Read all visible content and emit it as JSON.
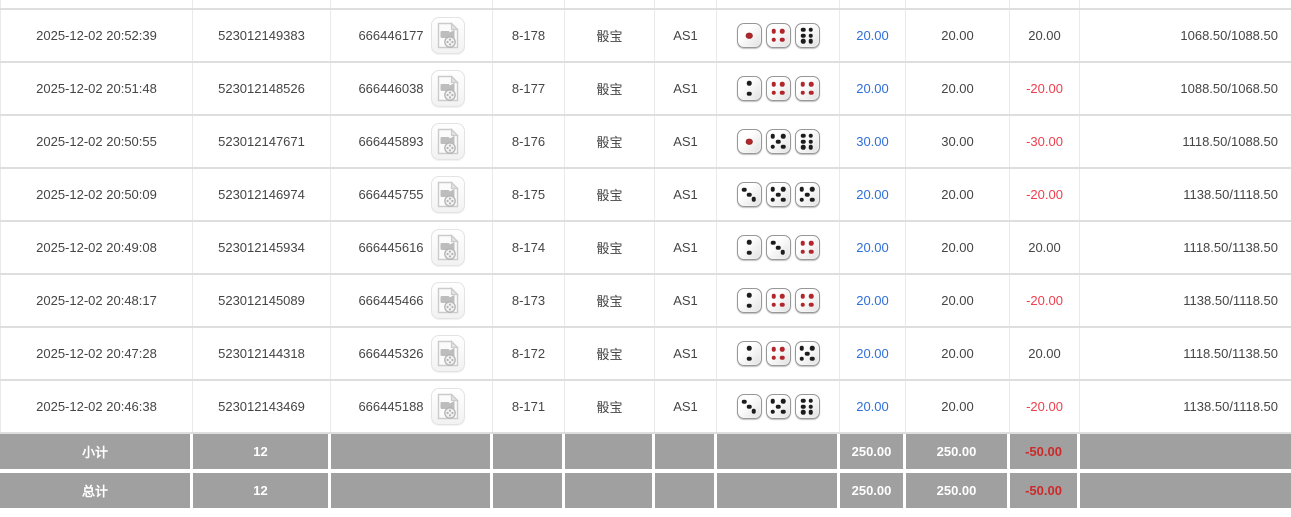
{
  "table": {
    "rows": [
      {
        "time": "2025-12-02 20:52:39",
        "bet_id": "523012149383",
        "round_id": "666446177",
        "round_no": "8-178",
        "game": "骰宝",
        "table_name": "AS1",
        "dice": [
          1,
          4,
          6
        ],
        "bet": "20.00",
        "valid": "20.00",
        "win_loss": "20.00",
        "win_loss_negative": false,
        "balance": "1068.50/1088.50"
      },
      {
        "time": "2025-12-02 20:51:48",
        "bet_id": "523012148526",
        "round_id": "666446038",
        "round_no": "8-177",
        "game": "骰宝",
        "table_name": "AS1",
        "dice": [
          2,
          4,
          4
        ],
        "bet": "20.00",
        "valid": "20.00",
        "win_loss": "-20.00",
        "win_loss_negative": true,
        "balance": "1088.50/1068.50"
      },
      {
        "time": "2025-12-02 20:50:55",
        "bet_id": "523012147671",
        "round_id": "666445893",
        "round_no": "8-176",
        "game": "骰宝",
        "table_name": "AS1",
        "dice": [
          1,
          5,
          6
        ],
        "bet": "30.00",
        "valid": "30.00",
        "win_loss": "-30.00",
        "win_loss_negative": true,
        "balance": "1118.50/1088.50"
      },
      {
        "time": "2025-12-02 20:50:09",
        "bet_id": "523012146974",
        "round_id": "666445755",
        "round_no": "8-175",
        "game": "骰宝",
        "table_name": "AS1",
        "dice": [
          3,
          5,
          5
        ],
        "bet": "20.00",
        "valid": "20.00",
        "win_loss": "-20.00",
        "win_loss_negative": true,
        "balance": "1138.50/1118.50"
      },
      {
        "time": "2025-12-02 20:49:08",
        "bet_id": "523012145934",
        "round_id": "666445616",
        "round_no": "8-174",
        "game": "骰宝",
        "table_name": "AS1",
        "dice": [
          2,
          3,
          4
        ],
        "bet": "20.00",
        "valid": "20.00",
        "win_loss": "20.00",
        "win_loss_negative": false,
        "balance": "1118.50/1138.50"
      },
      {
        "time": "2025-12-02 20:48:17",
        "bet_id": "523012145089",
        "round_id": "666445466",
        "round_no": "8-173",
        "game": "骰宝",
        "table_name": "AS1",
        "dice": [
          2,
          4,
          4
        ],
        "bet": "20.00",
        "valid": "20.00",
        "win_loss": "-20.00",
        "win_loss_negative": true,
        "balance": "1138.50/1118.50"
      },
      {
        "time": "2025-12-02 20:47:28",
        "bet_id": "523012144318",
        "round_id": "666445326",
        "round_no": "8-172",
        "game": "骰宝",
        "table_name": "AS1",
        "dice": [
          2,
          4,
          5
        ],
        "bet": "20.00",
        "valid": "20.00",
        "win_loss": "20.00",
        "win_loss_negative": false,
        "balance": "1118.50/1138.50"
      },
      {
        "time": "2025-12-02 20:46:38",
        "bet_id": "523012143469",
        "round_id": "666445188",
        "round_no": "8-171",
        "game": "骰宝",
        "table_name": "AS1",
        "dice": [
          3,
          5,
          6
        ],
        "bet": "20.00",
        "valid": "20.00",
        "win_loss": "-20.00",
        "win_loss_negative": true,
        "balance": "1138.50/1118.50"
      }
    ],
    "footer": [
      {
        "label": "小计",
        "count": "12",
        "bet": "250.00",
        "valid": "250.00",
        "win_loss": "-50.00"
      },
      {
        "label": "总计",
        "count": "12",
        "bet": "250.00",
        "valid": "250.00",
        "win_loss": "-50.00"
      }
    ]
  },
  "icons": {
    "video_replay": "video-file-icon"
  },
  "colors": {
    "bet_blue": "#2f6fd9",
    "loss_red": "#ee3f4d",
    "text_dark": "#454545",
    "footer_bg": "#a0a0a0",
    "footer_text": "#ffffff",
    "footer_red": "#cc2a2a",
    "dice_red_pip": "#b0262b",
    "dice_black_pip": "#1d1d1d"
  }
}
